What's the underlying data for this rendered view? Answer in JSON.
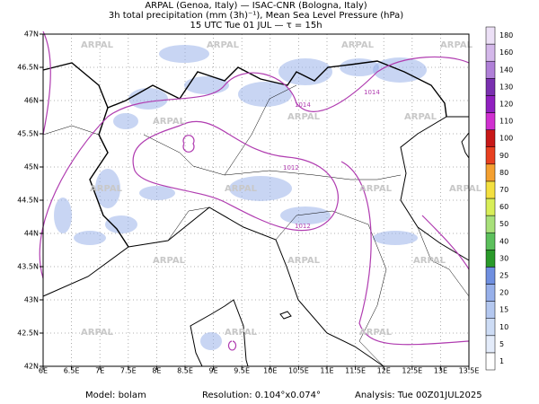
{
  "map": {
    "title_lines": [
      "ARPAL (Genoa, Italy)  —  ISAC-CNR (Bologna, Italy)",
      "3h total precipitation (mm (3h)⁻¹), Mean Sea Level Pressure (hPa)",
      "15 UTC Tue 01 JUL  —  τ = 15h"
    ],
    "xlim": [
      6,
      13.5
    ],
    "ylim": [
      42,
      47
    ],
    "xticks": [
      {
        "value": 6,
        "label": "6E"
      },
      {
        "value": 6.5,
        "label": "6.5E"
      },
      {
        "value": 7,
        "label": "7E"
      },
      {
        "value": 7.5,
        "label": "7.5E"
      },
      {
        "value": 8,
        "label": "8E"
      },
      {
        "value": 8.5,
        "label": "8.5E"
      },
      {
        "value": 9,
        "label": "9E"
      },
      {
        "value": 9.5,
        "label": "9.5E"
      },
      {
        "value": 10,
        "label": "10E"
      },
      {
        "value": 10.5,
        "label": "10.5E"
      },
      {
        "value": 11,
        "label": "11E"
      },
      {
        "value": 11.5,
        "label": "11.5E"
      },
      {
        "value": 12,
        "label": "12E"
      },
      {
        "value": 12.5,
        "label": "12.5E"
      },
      {
        "value": 13,
        "label": "13E"
      },
      {
        "value": 13.5,
        "label": "13.5E"
      }
    ],
    "yticks": [
      {
        "value": 42,
        "label": "42N"
      },
      {
        "value": 42.5,
        "label": "42.5N"
      },
      {
        "value": 43,
        "label": "43N"
      },
      {
        "value": 43.5,
        "label": "43.5N"
      },
      {
        "value": 44,
        "label": "44N"
      },
      {
        "value": 44.5,
        "label": "44.5N"
      },
      {
        "value": 45,
        "label": "45N"
      },
      {
        "value": 45.5,
        "label": "45.5N"
      },
      {
        "value": 46,
        "label": "46N"
      },
      {
        "value": 46.5,
        "label": "46.5N"
      },
      {
        "value": 47,
        "label": "47N"
      }
    ],
    "watermark": "ARPAL",
    "isobar_labels": [
      "1014",
      "1014",
      "1012",
      "1012"
    ],
    "colorbar": {
      "levels": [
        1,
        5,
        10,
        15,
        20,
        25,
        30,
        40,
        50,
        60,
        70,
        80,
        90,
        100,
        110,
        120,
        130,
        140,
        160,
        180
      ],
      "colors": [
        "#ffffff",
        "#e4ecfa",
        "#cddcf5",
        "#b4c8f0",
        "#97b0ea",
        "#6f8fe0",
        "#2a9a2a",
        "#5cc05c",
        "#a8e07a",
        "#d8ee58",
        "#f4e040",
        "#f4a030",
        "#e84020",
        "#c81818",
        "#d030d0",
        "#9020c0",
        "#7a30b0",
        "#b080d8",
        "#d4b8ea",
        "#ece0f6"
      ]
    },
    "footer": {
      "model": "Model: bolam",
      "resolution": "Resolution: 0.104°x0.074°",
      "analysis": "Analysis: Tue 00Z01JUL2025"
    }
  }
}
